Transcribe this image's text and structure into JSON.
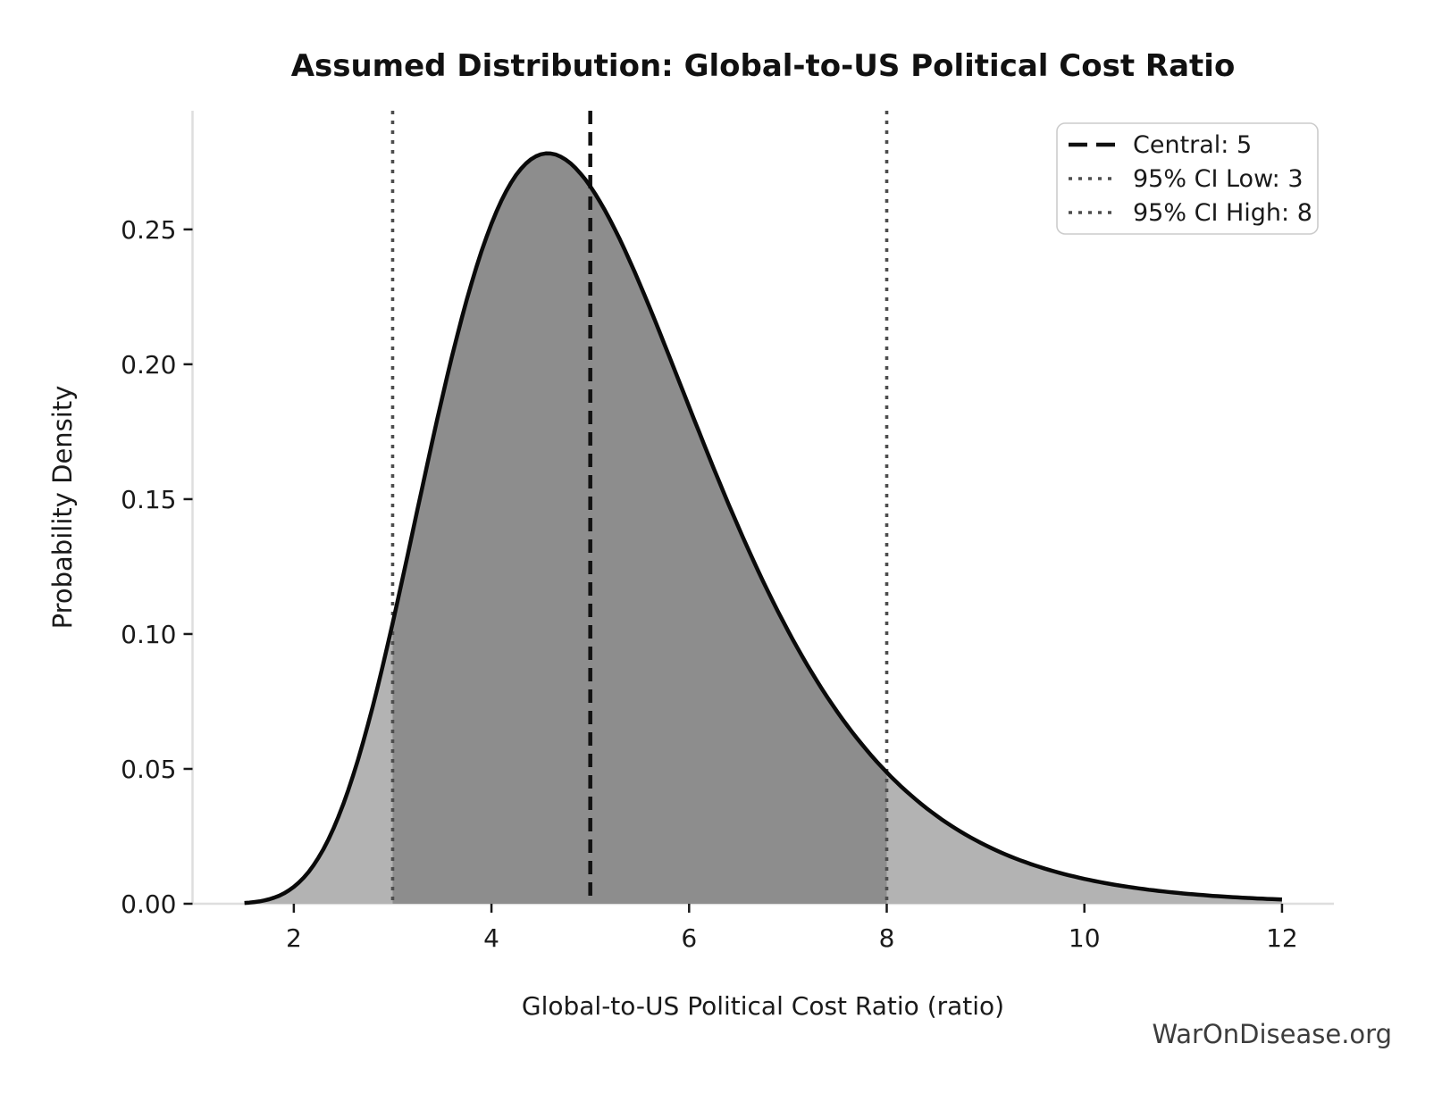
{
  "watermark": "WarOnDisease.org",
  "chart_data": {
    "type": "area",
    "title": "Assumed Distribution: Global-to-US Political Cost Ratio",
    "xlabel": "Global-to-US Political Cost Ratio (ratio)",
    "ylabel": "Probability Density",
    "x_ticks": [
      2,
      4,
      6,
      8,
      10,
      12
    ],
    "y_ticks": [
      0.0,
      0.05,
      0.1,
      0.15,
      0.2,
      0.25
    ],
    "y_tick_labels": [
      "0.00",
      "0.05",
      "0.10",
      "0.15",
      "0.20",
      "0.25"
    ],
    "xlim": [
      0.975,
      12.525
    ],
    "ylim": [
      0,
      0.294
    ],
    "grid": false,
    "legend_position": "upper right",
    "central": 5,
    "ci_low": 3,
    "ci_high": 8,
    "distribution": {
      "kind": "lognormal",
      "median": 5,
      "sigma": 0.3,
      "x_range": [
        1.5,
        12
      ],
      "peak_x": 4.57,
      "peak_density": 0.278
    },
    "curve_points": [
      [
        1.5,
        0.0003
      ],
      [
        2.0,
        0.0063
      ],
      [
        2.5,
        0.0369
      ],
      [
        3.0,
        0.104
      ],
      [
        3.5,
        0.1874
      ],
      [
        4.0,
        0.2521
      ],
      [
        4.5,
        0.2778
      ],
      [
        4.57,
        0.2782
      ],
      [
        5.0,
        0.266
      ],
      [
        5.5,
        0.2299
      ],
      [
        6.0,
        0.1843
      ],
      [
        6.5,
        0.1396
      ],
      [
        7.0,
        0.1013
      ],
      [
        7.5,
        0.0711
      ],
      [
        8.0,
        0.0487
      ],
      [
        8.5,
        0.0327
      ],
      [
        9.0,
        0.0217
      ],
      [
        9.5,
        0.0142
      ],
      [
        10.0,
        0.0092
      ],
      [
        10.5,
        0.006
      ],
      [
        11.0,
        0.0038
      ],
      [
        11.5,
        0.0025
      ],
      [
        12.0,
        0.0016
      ]
    ],
    "legend": [
      {
        "label": "Central: 5",
        "style": "dashed",
        "color": "#111111"
      },
      {
        "label": "95% CI Low: 3",
        "style": "dotted",
        "color": "#4d4d4d"
      },
      {
        "label": "95% CI High: 8",
        "style": "dotted",
        "color": "#4d4d4d"
      }
    ],
    "colors": {
      "curve": "#0a0a0a",
      "fill_ci": "#8d8d8d",
      "fill_tail": "#b3b3b3",
      "central_line": "#111111",
      "ci_line": "#4d4d4d",
      "spine": "#dedede",
      "tick": "#1a1a1a",
      "legend_border": "#cccccc",
      "legend_bg": "#ffffff"
    }
  }
}
